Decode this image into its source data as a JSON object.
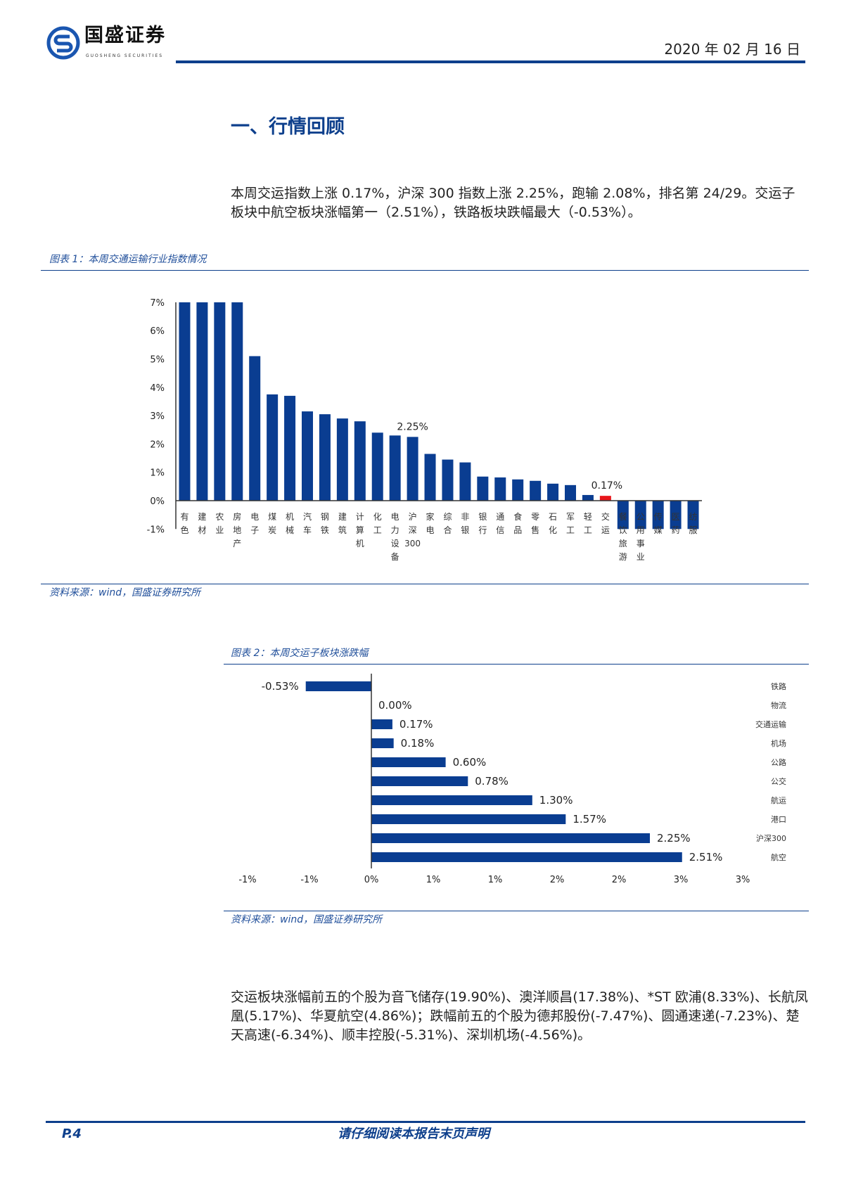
{
  "header": {
    "brand_cn": "国盛证券",
    "brand_en": "GUOSHENG SECURITIES",
    "date": "2020 年 02 月 16 日"
  },
  "section_title": "一、行情回顾",
  "intro": "本周交运指数上涨 0.17%，沪深 300 指数上涨 2.25%，跑输 2.08%，排名第 24/29。交运子板块中航空板块涨幅第一（2.51%），铁路板块跌幅最大（-0.53%）。",
  "figure1": {
    "caption": "图表 1：本周交通运输行业指数情况",
    "source": "资料来源：wind，国盛证券研究所"
  },
  "figure2": {
    "caption": "图表 2：本周交运子板块涨跌幅",
    "source": "资料来源：wind，国盛证券研究所"
  },
  "summary": "交运板块涨幅前五的个股为音飞储存(19.90%)、澳洋顺昌(17.38%)、*ST 欧浦(8.33%)、长航凤凰(5.17%)、华夏航空(4.86%)；跌幅前五的个股为德邦股份(-7.47%)、圆通速递(-7.23%)、楚天高速(-6.34%)、顺丰控股(-5.31%)、深圳机场(-4.56%)。",
  "footer": {
    "page": "P.4",
    "notice": "请仔细阅读本报告末页声明"
  },
  "colors": {
    "bar": "#0a3d91",
    "highlight": "#e8161b",
    "accent": "#0d3f8c"
  },
  "chart_data": [
    {
      "type": "bar",
      "title": "本周交通运输行业指数情况",
      "ylim": [
        -1,
        7
      ],
      "yticks": [
        "7%",
        "6%",
        "5%",
        "4%",
        "3%",
        "2%",
        "1%",
        "0%",
        "-1%"
      ],
      "categories": [
        "有色",
        "建材",
        "农业",
        "房地产",
        "电子",
        "煤炭",
        "机械",
        "汽车",
        "钢铁",
        "建筑",
        "计算机",
        "化工",
        "电力设备",
        "沪深300",
        "家电",
        "综合",
        "非银",
        "银行",
        "通信",
        "食品",
        "零售",
        "石化",
        "军工",
        "轻工",
        "交运",
        "餐饮旅游",
        "公用事业",
        "传媒",
        "医药",
        "纺服"
      ],
      "values": [
        7.0,
        7.0,
        7.0,
        7.0,
        5.1,
        3.75,
        3.7,
        3.15,
        3.05,
        2.9,
        2.8,
        2.4,
        2.3,
        2.25,
        1.65,
        1.45,
        1.35,
        0.85,
        0.82,
        0.75,
        0.7,
        0.6,
        0.55,
        0.2,
        0.17,
        -1.0,
        -1.0,
        -1.0,
        -1.0,
        -1.0
      ],
      "highlight": "交运",
      "data_labels": {
        "沪深300": "2.25%",
        "交运": "0.17%"
      }
    },
    {
      "type": "bar",
      "orientation": "horizontal",
      "title": "本周交运子板块涨跌幅",
      "xlim": [
        -1,
        3
      ],
      "xticks": [
        "-1%",
        "-1%",
        "0%",
        "1%",
        "1%",
        "2%",
        "2%",
        "3%",
        "3%"
      ],
      "categories": [
        "铁路",
        "物流",
        "交通运输",
        "机场",
        "公路",
        "公交",
        "航运",
        "港口",
        "沪深300",
        "航空"
      ],
      "values": [
        -0.53,
        0.0,
        0.17,
        0.18,
        0.6,
        0.78,
        1.3,
        1.57,
        2.25,
        2.51
      ],
      "labels": [
        "-0.53%",
        "0.00%",
        "0.17%",
        "0.18%",
        "0.60%",
        "0.78%",
        "1.30%",
        "1.57%",
        "2.25%",
        "2.51%"
      ]
    }
  ]
}
